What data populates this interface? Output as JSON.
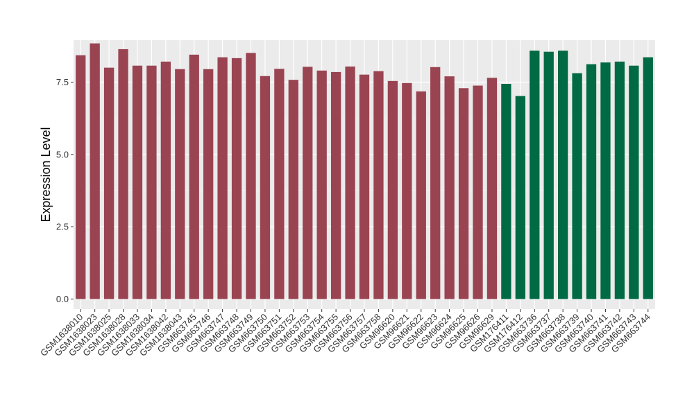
{
  "chart_data": {
    "type": "bar",
    "title": "",
    "xlabel": "",
    "ylabel": "Expression Level",
    "ylim": [
      -0.35,
      8.95
    ],
    "yticks": [
      0.0,
      2.5,
      5.0,
      7.5
    ],
    "ytick_labels": [
      "0.0",
      "2.5",
      "5.0",
      "7.5"
    ],
    "grid": true,
    "legend": "none",
    "colors": {
      "group1": "#9a4452",
      "group2": "#006a44",
      "panel_bg": "#ebebeb",
      "grid": "#ffffff"
    },
    "categories": [
      "GSM1638010",
      "GSM1638023",
      "GSM1638025",
      "GSM1638028",
      "GSM1638033",
      "GSM1638034",
      "GSM1638042",
      "GSM1638043",
      "GSM663745",
      "GSM663746",
      "GSM663747",
      "GSM663748",
      "GSM663749",
      "GSM663750",
      "GSM663751",
      "GSM663752",
      "GSM663753",
      "GSM663754",
      "GSM663755",
      "GSM663756",
      "GSM663757",
      "GSM663758",
      "GSM96620",
      "GSM96621",
      "GSM96622",
      "GSM96623",
      "GSM96624",
      "GSM96625",
      "GSM96626",
      "GSM96629",
      "GSM176411",
      "GSM176412",
      "GSM663736",
      "GSM663737",
      "GSM663738",
      "GSM663739",
      "GSM663740",
      "GSM663741",
      "GSM663742",
      "GSM663743",
      "GSM663744"
    ],
    "values": [
      8.43,
      8.84,
      8.0,
      8.64,
      8.07,
      8.07,
      8.21,
      7.95,
      8.45,
      7.95,
      8.36,
      8.33,
      8.51,
      7.71,
      7.96,
      7.58,
      8.03,
      7.9,
      7.85,
      8.04,
      7.76,
      7.88,
      7.54,
      7.47,
      7.18,
      8.02,
      7.7,
      7.29,
      7.38,
      7.65,
      7.44,
      7.02,
      8.59,
      8.55,
      8.59,
      7.81,
      8.12,
      8.18,
      8.21,
      8.07,
      8.36
    ],
    "groups": [
      1,
      1,
      1,
      1,
      1,
      1,
      1,
      1,
      1,
      1,
      1,
      1,
      1,
      1,
      1,
      1,
      1,
      1,
      1,
      1,
      1,
      1,
      1,
      1,
      1,
      1,
      1,
      1,
      1,
      1,
      2,
      2,
      2,
      2,
      2,
      2,
      2,
      2,
      2,
      2,
      2
    ]
  }
}
